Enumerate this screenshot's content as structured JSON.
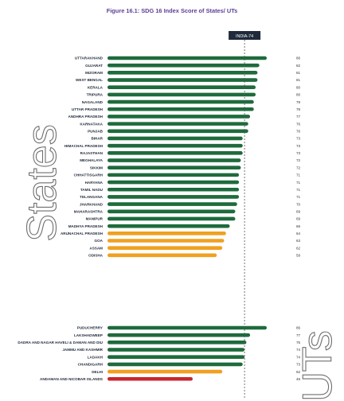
{
  "figure_title": "Figure 16.1: SDG 16 Index Score of States/ UTs",
  "colors": {
    "achiever": "#1e6b3c",
    "performer": "#f0a020",
    "aspirant": "#c8262e",
    "reference_box": "#1f2a3a",
    "title": "#5b3f97",
    "big_label": "#6f6f6f"
  },
  "chart_data": {
    "type": "bar",
    "orientation": "horizontal",
    "title": "Figure 16.1: SDG 16 Index Score of States/ UTs",
    "reference_line": {
      "label": "INDIA-74",
      "value": 74
    },
    "xlim": [
      0,
      100
    ],
    "groups": [
      {
        "name": "States",
        "items": [
          {
            "label": "UTTARAKHAND",
            "value": 86,
            "color": "#1e6b3c"
          },
          {
            "label": "GUJARAT",
            "value": 82,
            "color": "#1e6b3c"
          },
          {
            "label": "MIZORAM",
            "value": 81,
            "color": "#1e6b3c"
          },
          {
            "label": "WEST BENGAL",
            "value": 81,
            "color": "#1e6b3c"
          },
          {
            "label": "KERALA",
            "value": 80,
            "color": "#1e6b3c"
          },
          {
            "label": "TRIPURA",
            "value": 80,
            "color": "#1e6b3c"
          },
          {
            "label": "NAGALAND",
            "value": 79,
            "color": "#1e6b3c"
          },
          {
            "label": "UTTAR PRADESH",
            "value": 79,
            "color": "#1e6b3c"
          },
          {
            "label": "ANDHRA PRADESH",
            "value": 77,
            "color": "#1e6b3c"
          },
          {
            "label": "KARNATAKA",
            "value": 76,
            "color": "#1e6b3c"
          },
          {
            "label": "PUNJAB",
            "value": 76,
            "color": "#1e6b3c"
          },
          {
            "label": "BIHAR",
            "value": 73,
            "color": "#1e6b3c"
          },
          {
            "label": "HIMACHAL PRADESH",
            "value": 73,
            "color": "#1e6b3c"
          },
          {
            "label": "RAJASTHAN",
            "value": 73,
            "color": "#1e6b3c"
          },
          {
            "label": "MEGHALAYA",
            "value": 72,
            "color": "#1e6b3c"
          },
          {
            "label": "SIKKIM",
            "value": 72,
            "color": "#1e6b3c"
          },
          {
            "label": "CHHATTISGARH",
            "value": 71,
            "color": "#1e6b3c"
          },
          {
            "label": "HARYANA",
            "value": 71,
            "color": "#1e6b3c"
          },
          {
            "label": "TAMIL NADU",
            "value": 71,
            "color": "#1e6b3c"
          },
          {
            "label": "TELANGANA",
            "value": 71,
            "color": "#1e6b3c"
          },
          {
            "label": "JHARKHAND",
            "value": 70,
            "color": "#1e6b3c"
          },
          {
            "label": "MAHARASHTRA",
            "value": 69,
            "color": "#1e6b3c"
          },
          {
            "label": "MANIPUR",
            "value": 69,
            "color": "#1e6b3c"
          },
          {
            "label": "MADHYA PRADESH",
            "value": 66,
            "color": "#1e6b3c"
          },
          {
            "label": "ARUNACHAL PRADESH",
            "value": 64,
            "color": "#f0a020"
          },
          {
            "label": "GOA",
            "value": 63,
            "color": "#f0a020"
          },
          {
            "label": "ASSAM",
            "value": 62,
            "color": "#f0a020"
          },
          {
            "label": "ODISHA",
            "value": 59,
            "color": "#f0a020"
          }
        ]
      },
      {
        "name": "UTs",
        "items": [
          {
            "label": "PUDUCHERRY",
            "value": 86,
            "color": "#1e6b3c"
          },
          {
            "label": "LAKSHADWEEP",
            "value": 77,
            "color": "#1e6b3c"
          },
          {
            "label": "DADRA AND NAGAR HAVELI & DAMAN AND DIU",
            "value": 75,
            "color": "#1e6b3c"
          },
          {
            "label": "JAMMU AND KASHMIR",
            "value": 74,
            "color": "#1e6b3c"
          },
          {
            "label": "LADAKH",
            "value": 74,
            "color": "#1e6b3c"
          },
          {
            "label": "CHANDIGARH",
            "value": 73,
            "color": "#1e6b3c"
          },
          {
            "label": "DELHI",
            "value": 62,
            "color": "#f0a020"
          },
          {
            "label": "ANDAMAN AND NICOBAR ISLANDS",
            "value": 46,
            "color": "#c8262e"
          }
        ]
      }
    ]
  }
}
